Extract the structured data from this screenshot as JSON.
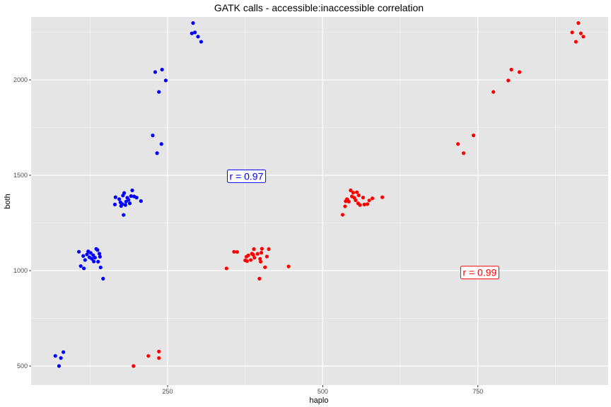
{
  "chart_data": {
    "type": "scatter",
    "title": "GATK calls - accessible:inaccessible correlation",
    "xlabel": "haplo",
    "ylabel": "both",
    "xlim": [
      30,
      960
    ],
    "ylim": [
      400,
      2330
    ],
    "x_ticks": [
      250,
      500,
      750
    ],
    "y_ticks": [
      500,
      1000,
      1500,
      2000
    ],
    "x_tick_labels": [
      "250",
      "500",
      "750"
    ],
    "y_tick_labels": [
      "500",
      "1000",
      "1500",
      "2000"
    ],
    "grid": true,
    "panel_background": "#e5e5e5",
    "grid_color": "#ffffff",
    "series": [
      {
        "color": "#0000ff",
        "points": [
          [
            69,
            553
          ],
          [
            75,
            500
          ],
          [
            78,
            542
          ],
          [
            82,
            573
          ],
          [
            107,
            1099
          ],
          [
            110,
            1024
          ],
          [
            114,
            1077
          ],
          [
            115,
            1012
          ],
          [
            117,
            1056
          ],
          [
            120,
            1085
          ],
          [
            122,
            1101
          ],
          [
            124,
            1070
          ],
          [
            126,
            1093
          ],
          [
            128,
            1062
          ],
          [
            130,
            1081
          ],
          [
            131,
            1048
          ],
          [
            133,
            1068
          ],
          [
            135,
            1114
          ],
          [
            137,
            1108
          ],
          [
            138,
            1047
          ],
          [
            140,
            1089
          ],
          [
            141,
            1073
          ],
          [
            142,
            1017
          ],
          [
            146,
            958
          ],
          [
            165,
            1347
          ],
          [
            166,
            1385
          ],
          [
            172,
            1375
          ],
          [
            174,
            1358
          ],
          [
            175,
            1339
          ],
          [
            177,
            1349
          ],
          [
            178,
            1394
          ],
          [
            179,
            1292
          ],
          [
            180,
            1407
          ],
          [
            182,
            1344
          ],
          [
            183,
            1362
          ],
          [
            185,
            1382
          ],
          [
            187,
            1371
          ],
          [
            189,
            1353
          ],
          [
            191,
            1391
          ],
          [
            193,
            1421
          ],
          [
            196,
            1389
          ],
          [
            200,
            1383
          ],
          [
            207,
            1365
          ],
          [
            226,
            1709
          ],
          [
            230,
            2041
          ],
          [
            233,
            1616
          ],
          [
            236,
            1937
          ],
          [
            240,
            1664
          ],
          [
            241,
            2054
          ],
          [
            247,
            1997
          ],
          [
            289,
            2244
          ],
          [
            291,
            2298
          ],
          [
            294,
            2249
          ],
          [
            299,
            2227
          ],
          [
            304,
            2200
          ]
        ]
      },
      {
        "color": "#ff0000",
        "points": [
          [
            195,
            500
          ],
          [
            219,
            553
          ],
          [
            236,
            542
          ],
          [
            236,
            576
          ],
          [
            345,
            1012
          ],
          [
            357,
            1099
          ],
          [
            362,
            1098
          ],
          [
            375,
            1054
          ],
          [
            377,
            1073
          ],
          [
            378,
            1050
          ],
          [
            380,
            1080
          ],
          [
            384,
            1056
          ],
          [
            386,
            1089
          ],
          [
            388,
            1083
          ],
          [
            389,
            1113
          ],
          [
            390,
            1068
          ],
          [
            395,
            1088
          ],
          [
            398,
            958
          ],
          [
            399,
            1062
          ],
          [
            400,
            1047
          ],
          [
            401,
            1094
          ],
          [
            402,
            1115
          ],
          [
            407,
            1018
          ],
          [
            410,
            1074
          ],
          [
            413,
            1113
          ],
          [
            445,
            1022
          ],
          [
            532,
            1293
          ],
          [
            536,
            1337
          ],
          [
            537,
            1364
          ],
          [
            539,
            1375
          ],
          [
            540,
            1371
          ],
          [
            542,
            1362
          ],
          [
            545,
            1421
          ],
          [
            547,
            1389
          ],
          [
            549,
            1409
          ],
          [
            551,
            1382
          ],
          [
            553,
            1369
          ],
          [
            555,
            1411
          ],
          [
            557,
            1353
          ],
          [
            558,
            1395
          ],
          [
            560,
            1344
          ],
          [
            565,
            1383
          ],
          [
            567,
            1347
          ],
          [
            572,
            1349
          ],
          [
            575,
            1368
          ],
          [
            580,
            1379
          ],
          [
            596,
            1385
          ],
          [
            718,
            1664
          ],
          [
            727,
            1616
          ],
          [
            743,
            1709
          ],
          [
            775,
            1937
          ],
          [
            799,
            1997
          ],
          [
            804,
            2054
          ],
          [
            817,
            2041
          ],
          [
            902,
            2249
          ],
          [
            908,
            2200
          ],
          [
            912,
            2298
          ],
          [
            916,
            2244
          ],
          [
            920,
            2227
          ]
        ]
      }
    ],
    "annotations": [
      {
        "text": "r =  0.97",
        "x": 377,
        "y": 1495,
        "color": "#0000ff"
      },
      {
        "text": "r =  0.99",
        "x": 753,
        "y": 990,
        "color": "#ff0000"
      }
    ]
  }
}
